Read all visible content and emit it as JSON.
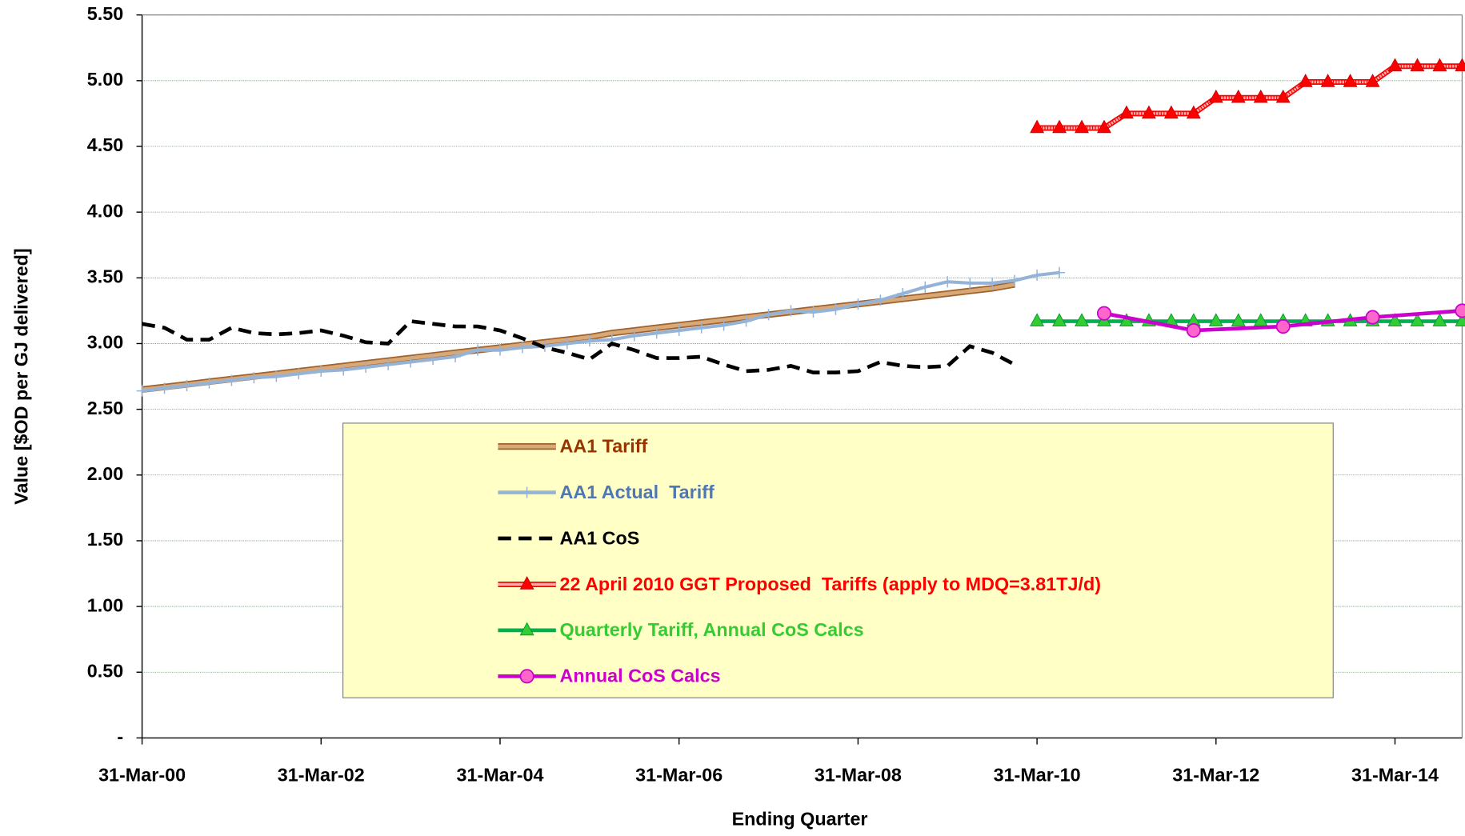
{
  "chart_data": {
    "type": "line",
    "x_label": "Ending Quarter",
    "y_label": "Value [$OD per GJ delivered]",
    "categories": [
      "31-Mar-00",
      null,
      null,
      null,
      null,
      null,
      null,
      null,
      "31-Mar-02",
      null,
      null,
      null,
      null,
      null,
      null,
      null,
      "31-Mar-04",
      null,
      null,
      null,
      null,
      null,
      null,
      null,
      "31-Mar-06",
      null,
      null,
      null,
      null,
      null,
      null,
      null,
      "31-Mar-08",
      null,
      null,
      null,
      null,
      null,
      null,
      null,
      "31-Mar-10",
      null,
      null,
      null,
      null,
      null,
      null,
      null,
      "31-Mar-12",
      null,
      null,
      null,
      null,
      null,
      null,
      null,
      "31-Mar-14",
      null,
      null,
      null
    ],
    "ylim": [
      0,
      5.5
    ],
    "yticks": [
      {
        "value": 0,
        "label": "-"
      },
      {
        "value": 0.5,
        "label": "0.50"
      },
      {
        "value": 1,
        "label": "1.00"
      },
      {
        "value": 1.5,
        "label": "1.50"
      },
      {
        "value": 2,
        "label": "2.00"
      },
      {
        "value": 2.5,
        "label": "2.50"
      },
      {
        "value": 3,
        "label": "3.00"
      },
      {
        "value": 3.5,
        "label": "3.50"
      },
      {
        "value": 4,
        "label": "4.00"
      },
      {
        "value": 4.5,
        "label": "4.50"
      },
      {
        "value": 5,
        "label": "5.00"
      },
      {
        "value": 5.5,
        "label": "5.50"
      }
    ],
    "grid": true,
    "series": [
      {
        "name": "AA1 Tariff",
        "color": "#d9a877",
        "outline": "#a0622d",
        "text_color": "#993300",
        "values": [
          2.65,
          2.67,
          2.69,
          2.71,
          2.73,
          2.75,
          2.77,
          2.79,
          2.81,
          2.83,
          2.85,
          2.87,
          2.89,
          2.91,
          2.93,
          2.95,
          2.97,
          2.99,
          3.01,
          3.03,
          3.05,
          3.08,
          3.1,
          3.12,
          3.14,
          3.16,
          3.18,
          3.2,
          3.22,
          3.24,
          3.26,
          3.28,
          3.3,
          3.32,
          3.34,
          3.36,
          3.38,
          3.4,
          3.42,
          3.45,
          null,
          null,
          null,
          null,
          null,
          null,
          null,
          null,
          null,
          null,
          null,
          null,
          null,
          null,
          null,
          null,
          null,
          null,
          null,
          null
        ]
      },
      {
        "name": "AA1 Actual  Tariff",
        "color": "#95b3d7",
        "text_color": "#4f77b5",
        "marker": "plus",
        "values": [
          2.64,
          2.66,
          2.68,
          2.7,
          2.72,
          2.74,
          2.75,
          2.77,
          2.79,
          2.8,
          2.82,
          2.84,
          2.86,
          2.88,
          2.9,
          2.95,
          2.95,
          2.97,
          2.98,
          3.0,
          3.02,
          3.03,
          3.06,
          3.08,
          3.1,
          3.12,
          3.14,
          3.17,
          3.22,
          3.25,
          3.24,
          3.26,
          3.3,
          3.33,
          3.38,
          3.43,
          3.47,
          3.46,
          3.46,
          3.48,
          3.52,
          3.54,
          null,
          null,
          null,
          null,
          null,
          null,
          null,
          null,
          null,
          null,
          null,
          null,
          null,
          null,
          null,
          null,
          null,
          null
        ]
      },
      {
        "name": "AA1 CoS",
        "color": "#000000",
        "dash": true,
        "values": [
          3.15,
          3.12,
          3.03,
          3.03,
          3.12,
          3.08,
          3.07,
          3.08,
          3.1,
          3.06,
          3.01,
          3.0,
          3.17,
          3.15,
          3.13,
          3.13,
          3.1,
          3.04,
          2.97,
          2.93,
          2.88,
          3.0,
          2.95,
          2.89,
          2.89,
          2.9,
          2.84,
          2.79,
          2.8,
          2.83,
          2.78,
          2.78,
          2.79,
          2.86,
          2.83,
          2.82,
          2.83,
          2.98,
          2.93,
          2.84,
          null,
          null,
          null,
          null,
          null,
          null,
          null,
          null,
          null,
          null,
          null,
          null,
          null,
          null,
          null,
          null,
          null,
          null,
          null,
          null
        ]
      },
      {
        "name": "22 April 2010 GGT Proposed  Tariffs (apply to MDQ=3.81TJ/d)",
        "color": "#ff0000",
        "marker": "triangle",
        "hatched": true,
        "values": [
          null,
          null,
          null,
          null,
          null,
          null,
          null,
          null,
          null,
          null,
          null,
          null,
          null,
          null,
          null,
          null,
          null,
          null,
          null,
          null,
          null,
          null,
          null,
          null,
          null,
          null,
          null,
          null,
          null,
          null,
          null,
          null,
          null,
          null,
          null,
          null,
          null,
          null,
          null,
          null,
          4.64,
          4.64,
          4.64,
          4.64,
          4.75,
          4.75,
          4.75,
          4.75,
          4.87,
          4.87,
          4.87,
          4.87,
          4.99,
          4.99,
          4.99,
          4.99,
          5.11,
          5.11,
          5.11,
          5.11
        ]
      },
      {
        "name": "Quarterly Tariff, Annual CoS Calcs",
        "color": "#00b050",
        "marker_color": "#33cc33",
        "text_color": "#33cc33",
        "marker": "triangle",
        "values": [
          null,
          null,
          null,
          null,
          null,
          null,
          null,
          null,
          null,
          null,
          null,
          null,
          null,
          null,
          null,
          null,
          null,
          null,
          null,
          null,
          null,
          null,
          null,
          null,
          null,
          null,
          null,
          null,
          null,
          null,
          null,
          null,
          null,
          null,
          null,
          null,
          null,
          null,
          null,
          null,
          3.17,
          3.17,
          3.17,
          3.17,
          3.17,
          3.17,
          3.17,
          3.17,
          3.17,
          3.17,
          3.17,
          3.17,
          3.17,
          3.17,
          3.17,
          3.17,
          3.17,
          3.17,
          3.17,
          3.17
        ]
      },
      {
        "name": "Annual CoS Calcs",
        "color": "#cc00cc",
        "marker_color": "#ff66cc",
        "marker": "circle",
        "connect_gaps": true,
        "values": [
          null,
          null,
          null,
          null,
          null,
          null,
          null,
          null,
          null,
          null,
          null,
          null,
          null,
          null,
          null,
          null,
          null,
          null,
          null,
          null,
          null,
          null,
          null,
          null,
          null,
          null,
          null,
          null,
          null,
          null,
          null,
          null,
          null,
          null,
          null,
          null,
          null,
          null,
          null,
          null,
          null,
          null,
          null,
          3.23,
          null,
          null,
          null,
          3.1,
          null,
          null,
          null,
          3.13,
          null,
          null,
          null,
          3.2,
          null,
          null,
          null,
          3.25
        ]
      }
    ]
  }
}
